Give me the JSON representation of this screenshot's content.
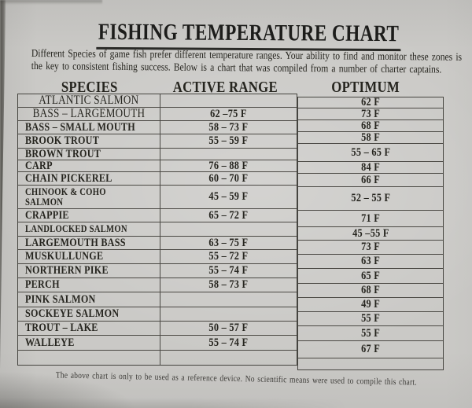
{
  "title": "FISHING TEMPERATURE CHART",
  "intro": {
    "line1": "Different Species of game fish prefer different temperature ranges.  Your ability to find and monitor these zones is",
    "line2": "the key to consistent fishing success.  Below is a chart that was compiled from a number of charter captains."
  },
  "table": {
    "columns": [
      "SPECIES",
      "ACTIVE RANGE",
      "OPTIMUM"
    ],
    "rows": [
      {
        "species": "ATLANTIC SALMON",
        "active_range": "",
        "optimum": "62 F"
      },
      {
        "species": "BASS – LARGEMOUTH",
        "active_range": "62 –75 F",
        "optimum": "73 F"
      },
      {
        "species": "BASS – SMALL MOUTH",
        "active_range": "58 – 73 F",
        "optimum": "68 F"
      },
      {
        "species": "BROOK TROUT",
        "active_range": "55 – 59 F",
        "optimum": "58 F"
      },
      {
        "species": "BROWN TROUT",
        "active_range": "",
        "optimum": "55 – 65 F"
      },
      {
        "species": "CARP",
        "active_range": "76 – 88 F",
        "optimum": "84 F"
      },
      {
        "species": "CHAIN PICKEREL",
        "active_range": "60 – 70 F",
        "optimum": "66 F"
      },
      {
        "species": "CHINOOK & COHO\nSALMON",
        "active_range": "45 – 59 F",
        "optimum": "52 – 55 F"
      },
      {
        "species": "CRAPPIE",
        "active_range": "65 – 72 F",
        "optimum": "71 F"
      },
      {
        "species": "LANDLOCKED SALMON",
        "active_range": "",
        "optimum": "45 –55 F"
      },
      {
        "species": "LARGEMOUTH BASS",
        "active_range": "63 – 75 F",
        "optimum": "73 F"
      },
      {
        "species": "MUSKULLUNGE",
        "active_range": "55 – 72 F",
        "optimum": "63 F"
      },
      {
        "species": "NORTHERN PIKE",
        "active_range": "55 – 74 F",
        "optimum": "65 F"
      },
      {
        "species": "PERCH",
        "active_range": "58 – 73 F",
        "optimum": "68 F"
      },
      {
        "species": "PINK SALMON",
        "active_range": "",
        "optimum": "49 F"
      },
      {
        "species": "SOCKEYE SALMON",
        "active_range": "",
        "optimum": "55 F"
      },
      {
        "species": "TROUT – LAKE",
        "active_range": "50 – 57 F",
        "optimum": "55 F"
      },
      {
        "species": "WALLEYE",
        "active_range": "55 – 74 F",
        "optimum": "67 F"
      },
      {
        "species": "",
        "active_range": "",
        "optimum": ""
      }
    ]
  },
  "footer": "The above chart is only to be used as a reference device.  No scientific means were used to compile this chart.",
  "colors": {
    "paper": "#cac9c6",
    "ink": "#26251f",
    "border": "#4a4843"
  }
}
